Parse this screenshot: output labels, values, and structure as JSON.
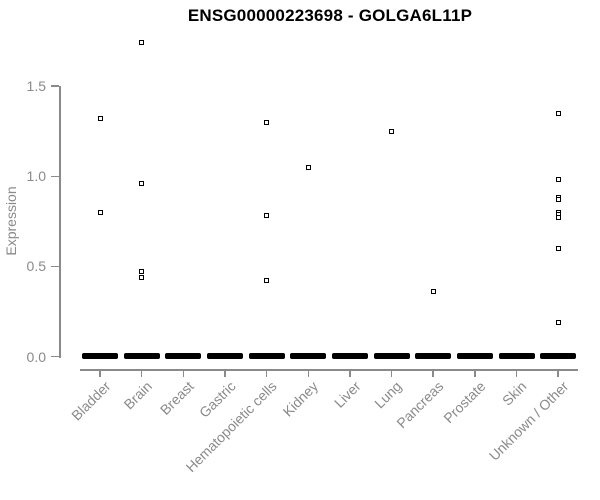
{
  "chart_data": {
    "type": "scatter",
    "title": "ENSG00000223698 - GOLGA6L11P",
    "xlabel": "",
    "ylabel": "Expression",
    "ylim": [
      0.0,
      1.5
    ],
    "yticks": [
      "0.0",
      "0.5",
      "1.0",
      "1.5"
    ],
    "grid": false,
    "legend": "none",
    "marker_style": "open-square",
    "categories": [
      "Bladder",
      "Brain",
      "Breast",
      "Gastric",
      "Hematopoietic cells",
      "Kidney",
      "Liver",
      "Lung",
      "Pancreas",
      "Prostate",
      "Skin",
      "Unknown / Other"
    ],
    "series": [
      {
        "name": "Bladder",
        "points": [
          1.32,
          0.8
        ],
        "zero_cluster": true
      },
      {
        "name": "Brain",
        "points": [
          1.74,
          0.96,
          0.47,
          0.44
        ],
        "zero_cluster": true
      },
      {
        "name": "Breast",
        "points": [],
        "zero_cluster": true
      },
      {
        "name": "Gastric",
        "points": [],
        "zero_cluster": true
      },
      {
        "name": "Hematopoietic cells",
        "points": [
          1.3,
          0.78,
          0.42
        ],
        "zero_cluster": true
      },
      {
        "name": "Kidney",
        "points": [
          1.05
        ],
        "zero_cluster": true
      },
      {
        "name": "Liver",
        "points": [],
        "zero_cluster": true
      },
      {
        "name": "Lung",
        "points": [
          1.25
        ],
        "zero_cluster": true
      },
      {
        "name": "Pancreas",
        "points": [
          0.36
        ],
        "zero_cluster": true
      },
      {
        "name": "Prostate",
        "points": [],
        "zero_cluster": true
      },
      {
        "name": "Skin",
        "points": [],
        "zero_cluster": true
      },
      {
        "name": "Unknown / Other",
        "points": [
          1.35,
          0.98,
          0.88,
          0.87,
          0.8,
          0.79,
          0.77,
          0.6,
          0.19
        ],
        "zero_cluster": true
      }
    ]
  },
  "colors": {
    "title": "#000000",
    "axis": "#8a8a8a",
    "tick_label": "#8a8a8a",
    "marker_outline": "#000000",
    "background": "#ffffff"
  }
}
